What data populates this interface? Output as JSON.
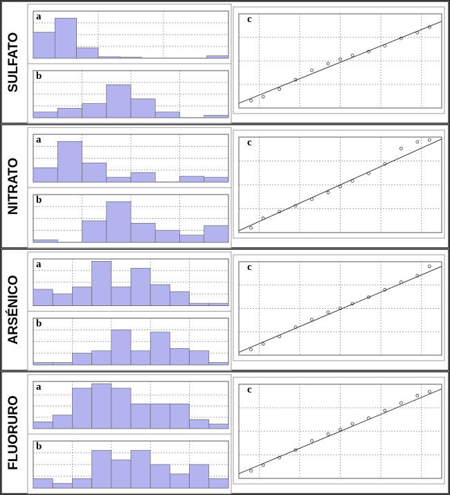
{
  "rows": [
    {
      "label": "SULFATO",
      "charts": [
        {
          "type": "histogram",
          "label": "a",
          "bins": [
            0,
            1,
            2,
            3,
            4,
            5,
            6,
            7,
            8,
            9
          ],
          "counts": [
            0.55,
            0.85,
            0.22,
            0.03,
            0.02,
            0,
            0,
            0,
            0.05
          ],
          "xlim": [
            0,
            9
          ],
          "ylim": [
            0,
            1
          ],
          "xticks": [
            3,
            6
          ],
          "yticks": [
            0.25,
            0.5,
            0.75
          ],
          "color": "#b3b3f0"
        },
        {
          "type": "histogram",
          "label": "b",
          "bins": [
            0,
            1,
            2,
            3,
            4,
            5,
            6,
            7,
            8
          ],
          "counts": [
            0.12,
            0.2,
            0.3,
            0.7,
            0.4,
            0.12,
            0,
            0.05
          ],
          "xlim": [
            0,
            8
          ],
          "ylim": [
            0,
            1
          ],
          "xticks": [
            2,
            4,
            6
          ],
          "yticks": [
            0.25,
            0.5,
            0.75
          ],
          "color": "#b3b3f0"
        },
        {
          "type": "qq",
          "label": "c",
          "x": [
            -2.2,
            -1.9,
            -1.5,
            -1.1,
            -0.7,
            -0.3,
            0,
            0.3,
            0.7,
            1.1,
            1.5,
            1.9,
            2.2
          ],
          "values": [
            0.08,
            0.12,
            0.2,
            0.3,
            0.4,
            0.47,
            0.52,
            0.56,
            0.6,
            0.66,
            0.74,
            0.8,
            0.86
          ],
          "reference_line": {
            "x": [
              -2.5,
              2.5
            ],
            "values": [
              0.05,
              0.92
            ]
          },
          "xlim": [
            -2.5,
            2.5
          ],
          "ylim": [
            0,
            1
          ],
          "xticks": [
            -2,
            -1,
            0,
            1,
            2
          ],
          "yticks": [
            0.25,
            0.5,
            0.75
          ]
        }
      ]
    },
    {
      "label": "NITRATO",
      "charts": [
        {
          "type": "histogram",
          "label": "a",
          "bins": [
            0,
            1,
            2,
            3,
            4,
            5,
            6,
            7,
            8
          ],
          "counts": [
            0.3,
            0.85,
            0.4,
            0.1,
            0.2,
            0,
            0.12,
            0.1
          ],
          "xlim": [
            0,
            8
          ],
          "ylim": [
            0,
            1
          ],
          "xticks": [
            2,
            4,
            6
          ],
          "yticks": [
            0.25,
            0.5,
            0.75
          ],
          "color": "#b3b3f0"
        },
        {
          "type": "histogram",
          "label": "b",
          "bins": [
            0,
            1,
            2,
            3,
            4,
            5,
            6,
            7,
            8
          ],
          "counts": [
            0.05,
            0,
            0.45,
            0.85,
            0.4,
            0.25,
            0.15,
            0.35
          ],
          "xlim": [
            0,
            8
          ],
          "ylim": [
            0,
            1
          ],
          "xticks": [
            2,
            4,
            6
          ],
          "yticks": [
            0.25,
            0.5,
            0.75
          ],
          "color": "#b3b3f0"
        },
        {
          "type": "qq",
          "label": "c",
          "x": [
            -2.2,
            -1.9,
            -1.5,
            -1.1,
            -0.7,
            -0.3,
            0,
            0.3,
            0.7,
            1.1,
            1.5,
            1.9,
            2.2
          ],
          "values": [
            0.05,
            0.15,
            0.22,
            0.28,
            0.35,
            0.42,
            0.48,
            0.54,
            0.62,
            0.72,
            0.88,
            0.95,
            0.97
          ],
          "reference_line": {
            "x": [
              -2.5,
              2.5
            ],
            "values": [
              0.02,
              0.98
            ]
          },
          "xlim": [
            -2.5,
            2.5
          ],
          "ylim": [
            0,
            1
          ],
          "xticks": [
            -2,
            -1,
            0,
            1,
            2
          ],
          "yticks": [
            0.25,
            0.5,
            0.75
          ]
        }
      ]
    },
    {
      "label": "ARSÉNICO",
      "charts": [
        {
          "type": "histogram",
          "label": "a",
          "bins": [
            0,
            1,
            2,
            3,
            4,
            5,
            6,
            7,
            8,
            9,
            10
          ],
          "counts": [
            0.35,
            0.25,
            0.4,
            0.95,
            0.4,
            0.8,
            0.45,
            0.3,
            0.05,
            0.05
          ],
          "xlim": [
            0,
            10
          ],
          "ylim": [
            0,
            1
          ],
          "xticks": [
            2,
            4,
            6,
            8
          ],
          "yticks": [
            0.25,
            0.5,
            0.75
          ],
          "color": "#b3b3f0"
        },
        {
          "type": "histogram",
          "label": "b",
          "bins": [
            0,
            1,
            2,
            3,
            4,
            5,
            6,
            7,
            8,
            9,
            10
          ],
          "counts": [
            0.05,
            0.05,
            0.25,
            0.3,
            0.75,
            0.3,
            0.7,
            0.35,
            0.3,
            0.05
          ],
          "xlim": [
            0,
            10
          ],
          "ylim": [
            0,
            1
          ],
          "xticks": [
            2,
            4,
            6,
            8
          ],
          "yticks": [
            0.25,
            0.5,
            0.75
          ],
          "color": "#b3b3f0"
        },
        {
          "type": "qq",
          "label": "c",
          "x": [
            -2.2,
            -1.9,
            -1.5,
            -1.1,
            -0.7,
            -0.3,
            0,
            0.3,
            0.7,
            1.1,
            1.5,
            1.9,
            2.2
          ],
          "values": [
            0.06,
            0.12,
            0.2,
            0.3,
            0.38,
            0.46,
            0.5,
            0.55,
            0.62,
            0.7,
            0.78,
            0.85,
            0.95
          ],
          "reference_line": {
            "x": [
              -2.5,
              2.5
            ],
            "values": [
              0.03,
              0.95
            ]
          },
          "xlim": [
            -2.5,
            2.5
          ],
          "ylim": [
            0,
            1
          ],
          "xticks": [
            -2,
            -1,
            0,
            1,
            2
          ],
          "yticks": [
            0.25,
            0.5,
            0.75
          ]
        }
      ]
    },
    {
      "label": "FLUORURO",
      "charts": [
        {
          "type": "histogram",
          "label": "a",
          "bins": [
            0,
            1,
            2,
            3,
            4,
            5,
            6,
            7,
            8,
            9,
            10
          ],
          "counts": [
            0.15,
            0.3,
            0.9,
            1.0,
            0.9,
            0.55,
            0.55,
            0.55,
            0.2,
            0.1
          ],
          "xlim": [
            0,
            10
          ],
          "ylim": [
            0,
            1.05
          ],
          "xticks": [
            2,
            4,
            6,
            8
          ],
          "yticks": [
            0.25,
            0.5,
            0.75
          ],
          "color": "#b3b3f0"
        },
        {
          "type": "histogram",
          "label": "b",
          "bins": [
            0,
            1,
            2,
            3,
            4,
            5,
            6,
            7,
            8,
            9,
            10
          ],
          "counts": [
            0.2,
            0.1,
            0.2,
            0.8,
            0.6,
            0.8,
            0.5,
            0.3,
            0.5,
            0.2
          ],
          "xlim": [
            0,
            10
          ],
          "ylim": [
            0,
            1
          ],
          "xticks": [
            2,
            4,
            6,
            8
          ],
          "yticks": [
            0.25,
            0.5,
            0.75
          ],
          "color": "#b3b3f0"
        },
        {
          "type": "qq",
          "label": "c",
          "x": [
            -2.2,
            -1.9,
            -1.5,
            -1.1,
            -0.7,
            -0.3,
            0,
            0.3,
            0.7,
            1.1,
            1.5,
            1.9,
            2.2
          ],
          "values": [
            0.08,
            0.14,
            0.22,
            0.3,
            0.4,
            0.47,
            0.52,
            0.58,
            0.64,
            0.72,
            0.8,
            0.88,
            0.92
          ],
          "reference_line": {
            "x": [
              -2.5,
              2.5
            ],
            "values": [
              0.05,
              0.95
            ]
          },
          "xlim": [
            -2.5,
            2.5
          ],
          "ylim": [
            0,
            1
          ],
          "xticks": [
            -2,
            -1,
            0,
            1,
            2
          ],
          "yticks": [
            0.25,
            0.5,
            0.75
          ]
        }
      ]
    }
  ]
}
